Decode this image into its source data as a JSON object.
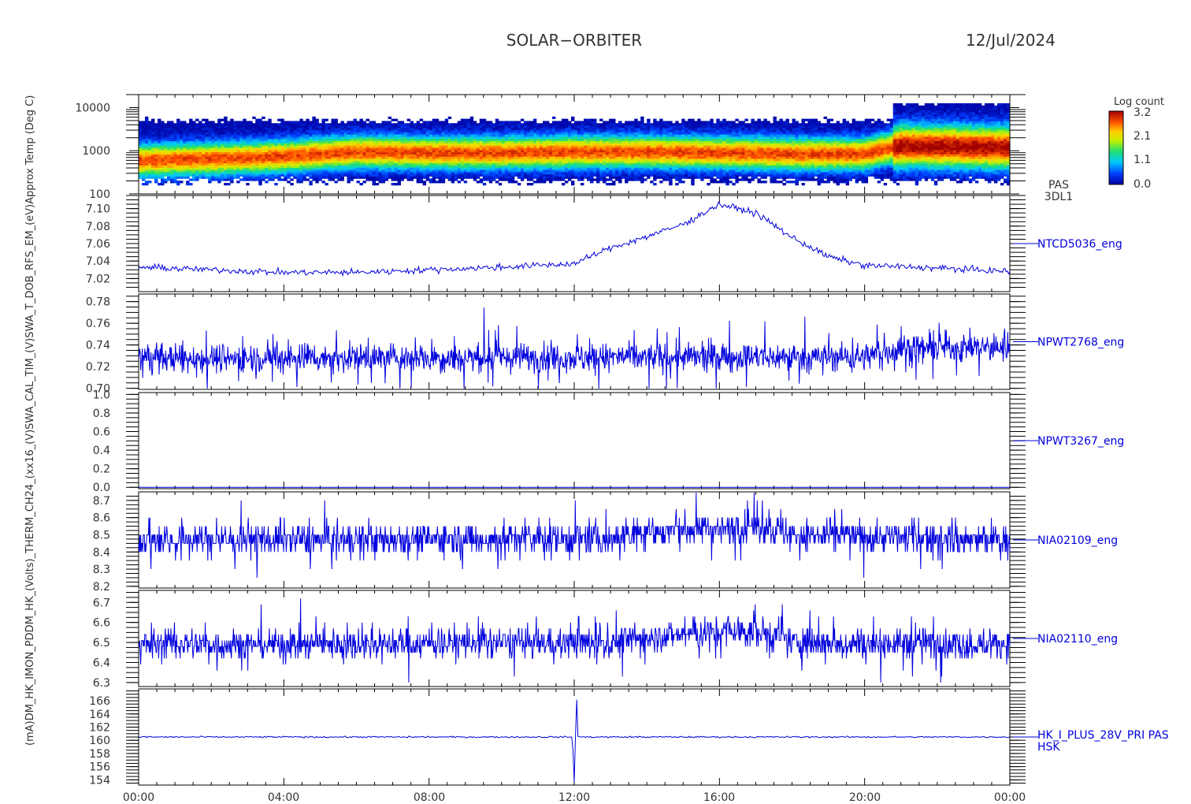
{
  "header": {
    "mission": "SOLAR−ORBITER",
    "date": "12/Jul/2024"
  },
  "left_axis_label": "(mA)DM_HK_IMON_PDDM_HK_(Volts)_THERM_CH24_(xx16_(V)SWA_CAL_TIM_(V)SWA_T_DOB_RFS_EM_(eV)Approx Temp (Deg C)",
  "colorbar": {
    "title": "Log count",
    "ticks": [
      "3.2",
      "2.1",
      "1.1",
      "0.0"
    ]
  },
  "x_axis": {
    "ticks": [
      "00:00",
      "04:00",
      "08:00",
      "12:00",
      "16:00",
      "20:00",
      "00:00"
    ]
  },
  "chart_data": [
    {
      "type": "heatmap",
      "panel_id": "pas-spectrogram",
      "label_lines": [
        "PAS",
        "3DL1"
      ],
      "y_scale": "log",
      "y_ticks": [
        "10000",
        "1000",
        "100"
      ],
      "ylim": [
        100,
        20000
      ],
      "xlim_hours": [
        0,
        24
      ],
      "color_range": [
        0.0,
        3.2
      ],
      "band_peak_energy_ev": [
        {
          "hour": 0,
          "energy": 600
        },
        {
          "hour": 2,
          "energy": 650
        },
        {
          "hour": 4,
          "energy": 750
        },
        {
          "hour": 6,
          "energy": 950
        },
        {
          "hour": 8,
          "energy": 900
        },
        {
          "hour": 10,
          "energy": 900
        },
        {
          "hour": 12,
          "energy": 950
        },
        {
          "hour": 14,
          "energy": 950
        },
        {
          "hour": 16,
          "energy": 900
        },
        {
          "hour": 18,
          "energy": 850
        },
        {
          "hour": 20,
          "energy": 850
        },
        {
          "hour": 21,
          "energy": 1300
        },
        {
          "hour": 24,
          "energy": 1200
        }
      ]
    },
    {
      "type": "line",
      "panel_id": "ntcd5036",
      "label": "NTCD5036_eng",
      "y_ticks": [
        "7.10",
        "7.08",
        "7.06",
        "7.04",
        "7.02"
      ],
      "ylim": [
        7.005,
        7.115
      ],
      "x_hours": [
        0,
        2,
        4,
        6,
        8,
        10,
        12,
        13,
        14,
        15,
        16,
        17,
        18,
        19,
        20,
        22,
        24
      ],
      "values": [
        7.033,
        7.03,
        7.027,
        7.027,
        7.03,
        7.033,
        7.037,
        7.055,
        7.068,
        7.082,
        7.105,
        7.095,
        7.067,
        7.045,
        7.035,
        7.032,
        7.028
      ],
      "noise": 0.0025,
      "jitter": "line"
    },
    {
      "type": "line",
      "panel_id": "npwt2768",
      "label": "NPWT2768_eng",
      "y_ticks": [
        "0.78",
        "0.76",
        "0.74",
        "0.72",
        "0.70"
      ],
      "ylim": [
        0.699,
        0.787
      ],
      "x_hours": [
        0,
        20,
        21,
        24
      ],
      "values": [
        0.728,
        0.729,
        0.737,
        0.738
      ],
      "noise": 0.009,
      "jitter": "spiky"
    },
    {
      "type": "line",
      "panel_id": "npwt3267",
      "label": "NPWT3267_eng",
      "y_ticks": [
        "1.0",
        "0.8",
        "0.6",
        "0.4",
        "0.2",
        "0.0"
      ],
      "ylim": [
        -0.015,
        1.02
      ],
      "x_hours": [
        0,
        24
      ],
      "values": [
        0.0,
        0.0
      ],
      "noise": 0.0,
      "jitter": "flat"
    },
    {
      "type": "line",
      "panel_id": "nia02109",
      "label": "NIA02109_eng",
      "y_ticks": [
        "8.7",
        "8.6",
        "8.5",
        "8.4",
        "8.3",
        "8.2"
      ],
      "ylim": [
        8.19,
        8.75
      ],
      "x_hours": [
        0,
        13,
        14,
        16,
        17,
        18,
        24
      ],
      "values": [
        8.47,
        8.48,
        8.52,
        8.54,
        8.56,
        8.5,
        8.47
      ],
      "noise": 0.06,
      "jitter": "quantized",
      "step": 0.05
    },
    {
      "type": "line",
      "panel_id": "nia02110",
      "label": "NIA02110_eng",
      "y_ticks": [
        "6.7",
        "6.6",
        "6.5",
        "6.4",
        "6.3"
      ],
      "ylim": [
        6.28,
        6.76
      ],
      "x_hours": [
        0,
        13,
        14,
        16,
        17,
        18,
        24
      ],
      "values": [
        6.49,
        6.5,
        6.53,
        6.55,
        6.56,
        6.5,
        6.49
      ],
      "noise": 0.05,
      "jitter": "quantized",
      "step": 0.03
    },
    {
      "type": "line",
      "panel_id": "hk-i-plus-28v",
      "label_lines": [
        "HK_I_PLUS_28V_PRI PAS",
        "HSK"
      ],
      "y_ticks": [
        "166",
        "164",
        "162",
        "160",
        "158",
        "156",
        "154"
      ],
      "ylim": [
        153.2,
        167.8
      ],
      "x_hours": [
        0,
        11.95,
        12.0,
        12.03,
        12.07,
        12.1,
        12.15,
        24
      ],
      "values": [
        160.5,
        160.5,
        153.8,
        160.0,
        166.5,
        160.6,
        160.5,
        160.5
      ],
      "noise": 0.08,
      "jitter": "line"
    }
  ]
}
